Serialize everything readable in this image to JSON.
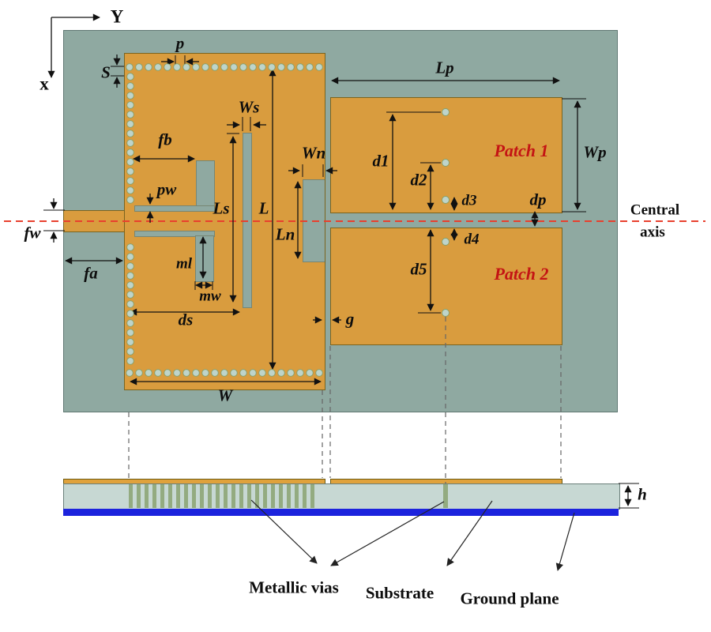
{
  "axes": {
    "y": "Y",
    "x": "x"
  },
  "dimensions": {
    "p": "p",
    "s": "S",
    "fb": "fb",
    "pw": "pw",
    "fw": "fw",
    "fa": "fa",
    "ls": "Ls",
    "l": "L",
    "ws": "Ws",
    "wn": "Wn",
    "ln": "Ln",
    "ml": "ml",
    "mw": "mw",
    "ds": "ds",
    "w": "W",
    "g": "g",
    "lp": "Lp",
    "wp": "Wp",
    "d1": "d1",
    "d2": "d2",
    "d3": "d3",
    "dp": "dp",
    "d4": "d4",
    "d5": "d5",
    "h": "h"
  },
  "regions": {
    "patch1": "Patch 1",
    "patch2": "Patch 2"
  },
  "annotations": {
    "central_axis_line1": "Central",
    "central_axis_line2": "axis",
    "metallic_vias": "Metallic vias",
    "substrate": "Substrate",
    "ground_plane": "Ground plane"
  },
  "colors": {
    "substrate_top": "#8fa9a1",
    "substrate_side": "#c7d8d3",
    "copper": "#d99c3e",
    "copper_side": "#e0a23c",
    "copper_outline": "#7a641f",
    "via_fill": "#bed4ca",
    "via_stroke": "#85a06b",
    "via_stripe": "#93ab80",
    "ground": "#1c23dd",
    "axis_red": "#e8402e",
    "patch_label": "#c41414"
  }
}
